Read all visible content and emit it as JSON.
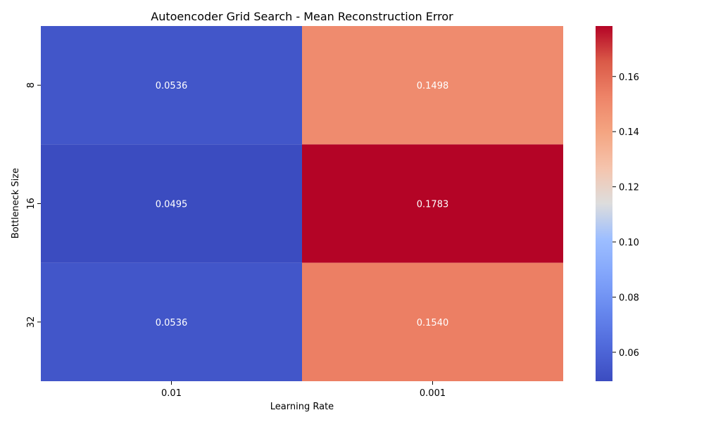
{
  "chart_data": {
    "type": "heatmap",
    "title": "Autoencoder Grid Search - Mean Reconstruction Error",
    "xlabel": "Learning Rate",
    "ylabel": "Bottleneck Size",
    "x_categories": [
      "0.01",
      "0.001"
    ],
    "y_categories": [
      "8",
      "16",
      "32"
    ],
    "values": [
      [
        0.0536,
        0.1498
      ],
      [
        0.0495,
        0.1783
      ],
      [
        0.0536,
        0.154
      ]
    ],
    "cell_labels": [
      [
        "0.0536",
        "0.1498"
      ],
      [
        "0.0495",
        "0.1783"
      ],
      [
        "0.0536",
        "0.1540"
      ]
    ],
    "colormap": "coolwarm",
    "colorbar": {
      "range": [
        0.0495,
        0.1783
      ],
      "ticks": [
        0.06,
        0.08,
        0.1,
        0.12,
        0.14,
        0.16
      ],
      "tick_labels": [
        "0.06",
        "0.08",
        "0.10",
        "0.12",
        "0.14",
        "0.16"
      ]
    }
  }
}
